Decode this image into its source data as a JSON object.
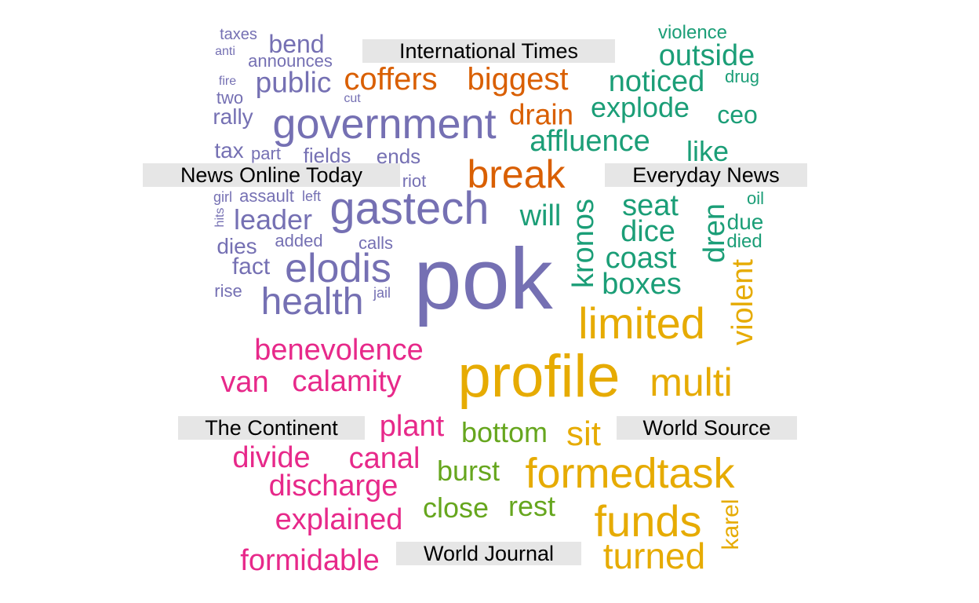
{
  "colors": {
    "International Times": "#d95f02",
    "News Online Today": "#7570b3",
    "Everyday News": "#1b9e77",
    "The Continent": "#e7298a",
    "World Source": "#66a61e",
    "World Journal": "#e6ab02"
  },
  "groups": [
    {
      "name": "International Times",
      "label": "International Times"
    },
    {
      "name": "News Online Today",
      "label": "News Online Today"
    },
    {
      "name": "Everyday News",
      "label": "Everyday News"
    },
    {
      "name": "The Continent",
      "label": "The Continent"
    },
    {
      "name": "World Source",
      "label": "World Source"
    },
    {
      "name": "World Journal",
      "label": "World Journal"
    }
  ],
  "words": [
    {
      "text": "coffers",
      "group": "International Times"
    },
    {
      "text": "biggest",
      "group": "International Times"
    },
    {
      "text": "drain",
      "group": "International Times"
    },
    {
      "text": "break",
      "group": "International Times"
    },
    {
      "text": "taxes",
      "group": "News Online Today"
    },
    {
      "text": "bend",
      "group": "News Online Today"
    },
    {
      "text": "anti",
      "group": "News Online Today"
    },
    {
      "text": "announces",
      "group": "News Online Today"
    },
    {
      "text": "fire",
      "group": "News Online Today"
    },
    {
      "text": "public",
      "group": "News Online Today"
    },
    {
      "text": "two",
      "group": "News Online Today"
    },
    {
      "text": "cut",
      "group": "News Online Today"
    },
    {
      "text": "rally",
      "group": "News Online Today"
    },
    {
      "text": "government",
      "group": "News Online Today"
    },
    {
      "text": "tax",
      "group": "News Online Today"
    },
    {
      "text": "part",
      "group": "News Online Today"
    },
    {
      "text": "fields",
      "group": "News Online Today"
    },
    {
      "text": "ends",
      "group": "News Online Today"
    },
    {
      "text": "riot",
      "group": "News Online Today"
    },
    {
      "text": "girl",
      "group": "News Online Today"
    },
    {
      "text": "assault",
      "group": "News Online Today"
    },
    {
      "text": "left",
      "group": "News Online Today"
    },
    {
      "text": "hits",
      "group": "News Online Today"
    },
    {
      "text": "leader",
      "group": "News Online Today"
    },
    {
      "text": "gastech",
      "group": "News Online Today"
    },
    {
      "text": "dies",
      "group": "News Online Today"
    },
    {
      "text": "added",
      "group": "News Online Today"
    },
    {
      "text": "calls",
      "group": "News Online Today"
    },
    {
      "text": "fact",
      "group": "News Online Today"
    },
    {
      "text": "elodis",
      "group": "News Online Today"
    },
    {
      "text": "pok",
      "group": "News Online Today"
    },
    {
      "text": "rise",
      "group": "News Online Today"
    },
    {
      "text": "jail",
      "group": "News Online Today"
    },
    {
      "text": "health",
      "group": "News Online Today"
    },
    {
      "text": "violence",
      "group": "Everyday News"
    },
    {
      "text": "outside",
      "group": "Everyday News"
    },
    {
      "text": "drug",
      "group": "Everyday News"
    },
    {
      "text": "noticed",
      "group": "Everyday News"
    },
    {
      "text": "explode",
      "group": "Everyday News"
    },
    {
      "text": "ceo",
      "group": "Everyday News"
    },
    {
      "text": "affluence",
      "group": "Everyday News"
    },
    {
      "text": "like",
      "group": "Everyday News"
    },
    {
      "text": "oil",
      "group": "Everyday News"
    },
    {
      "text": "seat",
      "group": "Everyday News"
    },
    {
      "text": "will",
      "group": "Everyday News"
    },
    {
      "text": "dren",
      "group": "Everyday News"
    },
    {
      "text": "due",
      "group": "Everyday News"
    },
    {
      "text": "dice",
      "group": "Everyday News"
    },
    {
      "text": "died",
      "group": "Everyday News"
    },
    {
      "text": "kronos",
      "group": "Everyday News"
    },
    {
      "text": "coast",
      "group": "Everyday News"
    },
    {
      "text": "boxes",
      "group": "Everyday News"
    },
    {
      "text": "benevolence",
      "group": "The Continent"
    },
    {
      "text": "van",
      "group": "The Continent"
    },
    {
      "text": "calamity",
      "group": "The Continent"
    },
    {
      "text": "plant",
      "group": "The Continent"
    },
    {
      "text": "divide",
      "group": "The Continent"
    },
    {
      "text": "canal",
      "group": "The Continent"
    },
    {
      "text": "discharge",
      "group": "The Continent"
    },
    {
      "text": "explained",
      "group": "The Continent"
    },
    {
      "text": "formidable",
      "group": "The Continent"
    },
    {
      "text": "bottom",
      "group": "World Source"
    },
    {
      "text": "burst",
      "group": "World Source"
    },
    {
      "text": "close",
      "group": "World Source"
    },
    {
      "text": "rest",
      "group": "World Source"
    },
    {
      "text": "limited",
      "group": "World Journal"
    },
    {
      "text": "violent",
      "group": "World Journal"
    },
    {
      "text": "profile",
      "group": "World Journal"
    },
    {
      "text": "multi",
      "group": "World Journal"
    },
    {
      "text": "sit",
      "group": "World Journal"
    },
    {
      "text": "formedtask",
      "group": "World Journal"
    },
    {
      "text": "funds",
      "group": "World Journal"
    },
    {
      "text": "karel",
      "group": "World Journal"
    },
    {
      "text": "turned",
      "group": "World Journal"
    }
  ]
}
